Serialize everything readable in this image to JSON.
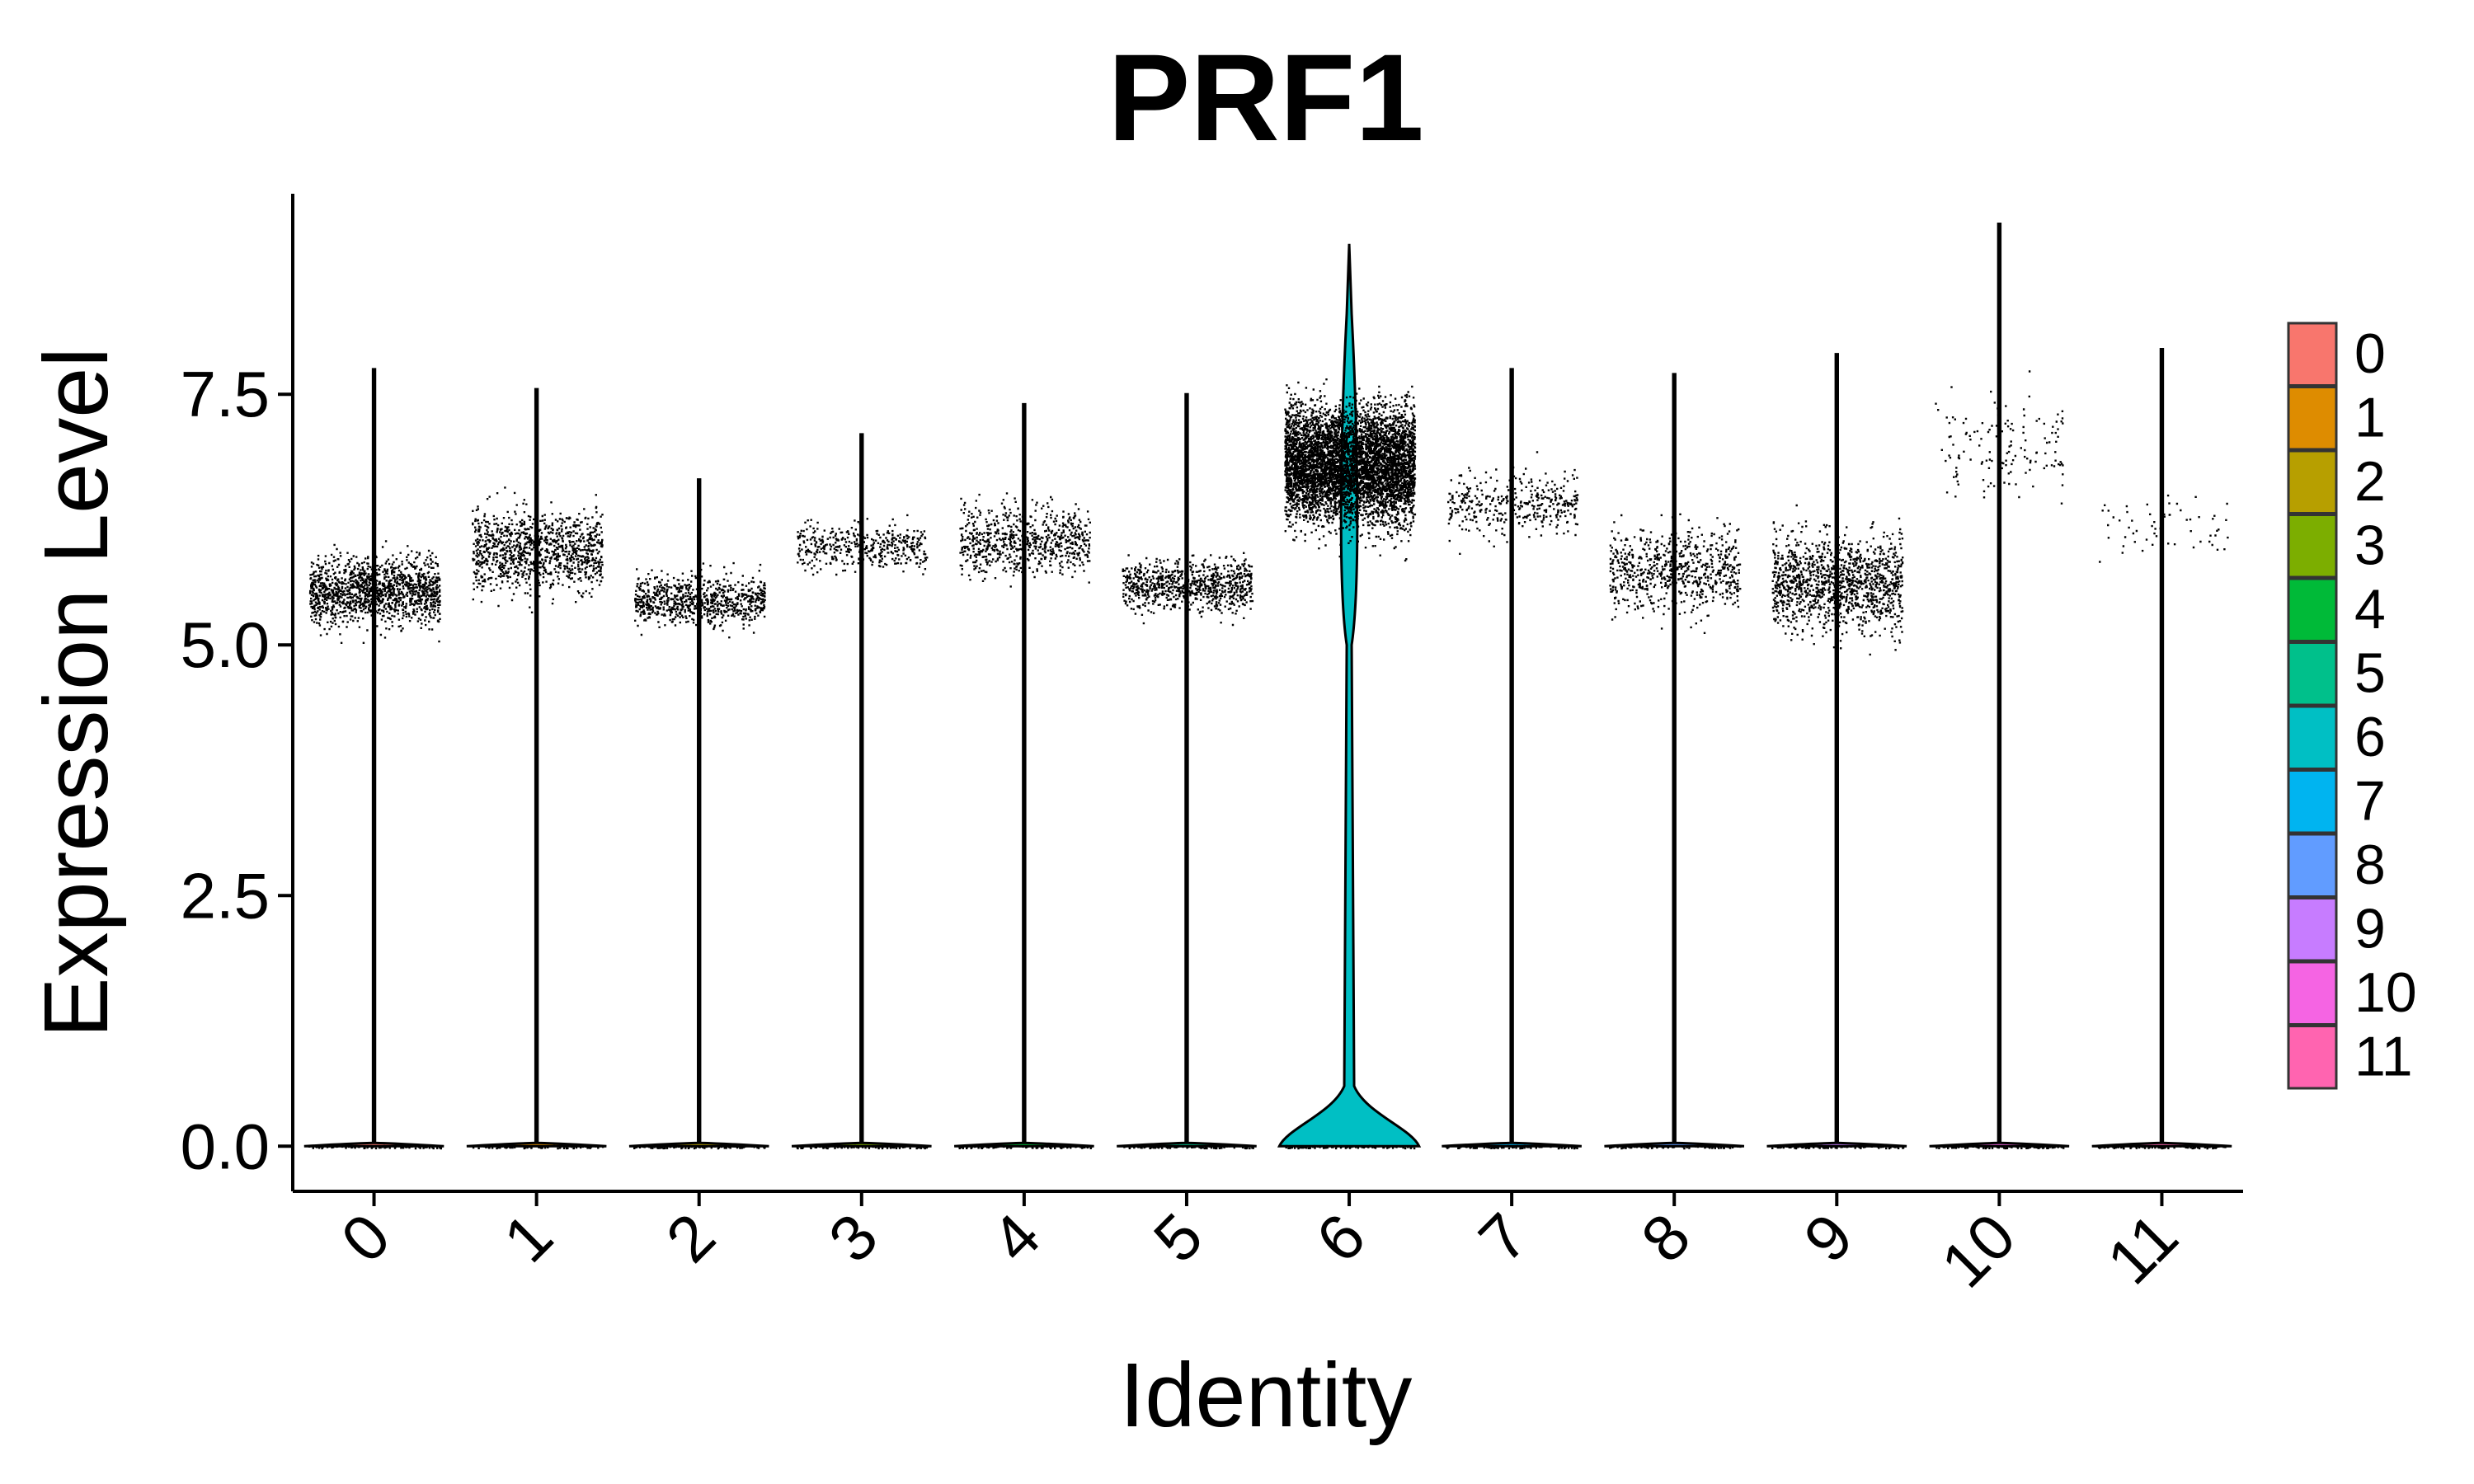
{
  "chart_data": {
    "type": "violin",
    "title": "PRF1",
    "xlabel": "Identity",
    "ylabel": "Expression Level",
    "ylim": [
      -0.45,
      9.5
    ],
    "yticks": [
      0.0,
      2.5,
      5.0,
      7.5
    ],
    "ytick_labels": [
      "0.0",
      "2.5",
      "5.0",
      "7.5"
    ],
    "categories": [
      "0",
      "1",
      "2",
      "3",
      "4",
      "5",
      "6",
      "7",
      "8",
      "9",
      "10",
      "11"
    ],
    "colors": [
      "#F8766D",
      "#DE8C00",
      "#B79F00",
      "#7CAE00",
      "#00BA38",
      "#00C08B",
      "#00BFC4",
      "#00B4F0",
      "#619CFF",
      "#C77CFF",
      "#F564E3",
      "#FF64B0"
    ],
    "legend_position": "right",
    "legend_entries": [
      "0",
      "1",
      "2",
      "3",
      "4",
      "5",
      "6",
      "7",
      "8",
      "9",
      "10",
      "11"
    ],
    "grid": false,
    "clusters": [
      {
        "id": "0",
        "max": 7.75,
        "cluster_center": 5.55,
        "cluster_low": 4.65,
        "cluster_high": 6.9,
        "n_points": 1400
      },
      {
        "id": "1",
        "max": 7.55,
        "cluster_center": 5.95,
        "cluster_low": 4.75,
        "cluster_high": 7.5,
        "n_points": 1100
      },
      {
        "id": "2",
        "max": 6.65,
        "cluster_center": 5.45,
        "cluster_low": 4.9,
        "cluster_high": 6.6,
        "n_points": 800
      },
      {
        "id": "3",
        "max": 7.1,
        "cluster_center": 6.0,
        "cluster_low": 5.4,
        "cluster_high": 6.95,
        "n_points": 420
      },
      {
        "id": "4",
        "max": 7.4,
        "cluster_center": 6.05,
        "cluster_low": 5.0,
        "cluster_high": 7.35,
        "n_points": 700
      },
      {
        "id": "5",
        "max": 7.5,
        "cluster_center": 5.6,
        "cluster_low": 4.75,
        "cluster_high": 6.5,
        "n_points": 800
      },
      {
        "id": "6",
        "max": 9.0,
        "cluster_center": 6.8,
        "cluster_low": 4.7,
        "cluster_high": 8.7,
        "n_points": 5500
      },
      {
        "id": "7",
        "max": 7.75,
        "cluster_center": 6.4,
        "cluster_low": 5.5,
        "cluster_high": 7.75,
        "n_points": 380
      },
      {
        "id": "8",
        "max": 7.7,
        "cluster_center": 5.75,
        "cluster_low": 4.85,
        "cluster_high": 7.7,
        "n_points": 700
      },
      {
        "id": "9",
        "max": 7.9,
        "cluster_center": 5.65,
        "cluster_low": 4.7,
        "cluster_high": 7.9,
        "n_points": 1300
      },
      {
        "id": "10",
        "max": 9.2,
        "cluster_center": 7.0,
        "cluster_low": 5.6,
        "cluster_high": 9.2,
        "n_points": 140
      },
      {
        "id": "11",
        "max": 7.95,
        "cluster_center": 6.15,
        "cluster_low": 5.2,
        "cluster_high": 7.95,
        "n_points": 60
      }
    ]
  }
}
